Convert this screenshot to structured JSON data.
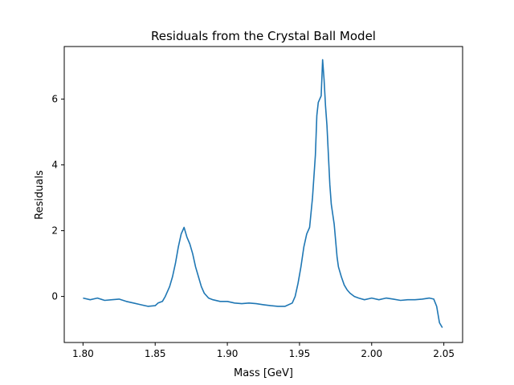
{
  "chart_data": {
    "type": "line",
    "title": "Residuals from the Crystal Ball Model",
    "xlabel": "Mass [GeV]",
    "ylabel": "Residuals",
    "xlim": [
      1.787,
      2.063
    ],
    "ylim": [
      -1.4,
      7.6
    ],
    "x_ticks": [
      "1.80",
      "1.85",
      "1.90",
      "1.95",
      "2.00",
      "2.05"
    ],
    "x_tick_values": [
      1.8,
      1.85,
      1.9,
      1.95,
      2.0,
      2.05
    ],
    "y_ticks": [
      "0",
      "2",
      "4",
      "6"
    ],
    "y_tick_values": [
      0,
      2,
      4,
      6
    ],
    "grid": false,
    "series": [
      {
        "color": "#1f77b4",
        "x": [
          1.8,
          1.805,
          1.81,
          1.815,
          1.82,
          1.825,
          1.83,
          1.835,
          1.84,
          1.845,
          1.85,
          1.852,
          1.855,
          1.857,
          1.86,
          1.862,
          1.864,
          1.866,
          1.868,
          1.87,
          1.872,
          1.874,
          1.876,
          1.878,
          1.88,
          1.882,
          1.884,
          1.887,
          1.89,
          1.895,
          1.9,
          1.905,
          1.91,
          1.915,
          1.92,
          1.925,
          1.93,
          1.935,
          1.94,
          1.945,
          1.947,
          1.949,
          1.951,
          1.953,
          1.955,
          1.957,
          1.959,
          1.961,
          1.962,
          1.963,
          1.964,
          1.965,
          1.966,
          1.967,
          1.968,
          1.969,
          1.97,
          1.971,
          1.972,
          1.973,
          1.974,
          1.975,
          1.976,
          1.977,
          1.979,
          1.981,
          1.983,
          1.985,
          1.988,
          1.991,
          1.995,
          2.0,
          2.005,
          2.01,
          2.015,
          2.02,
          2.025,
          2.03,
          2.035,
          2.04,
          2.043,
          2.045,
          2.047,
          2.049
        ],
        "y": [
          -0.05,
          -0.1,
          -0.05,
          -0.12,
          -0.1,
          -0.08,
          -0.15,
          -0.2,
          -0.25,
          -0.3,
          -0.28,
          -0.2,
          -0.15,
          0.0,
          0.3,
          0.6,
          1.0,
          1.5,
          1.9,
          2.1,
          1.8,
          1.6,
          1.3,
          0.9,
          0.6,
          0.3,
          0.1,
          -0.05,
          -0.1,
          -0.15,
          -0.15,
          -0.2,
          -0.22,
          -0.2,
          -0.22,
          -0.25,
          -0.28,
          -0.3,
          -0.3,
          -0.2,
          0.0,
          0.4,
          0.9,
          1.5,
          1.9,
          2.1,
          3.0,
          4.3,
          5.5,
          5.9,
          6.0,
          6.1,
          7.2,
          6.6,
          5.8,
          5.2,
          4.3,
          3.4,
          2.8,
          2.5,
          2.2,
          1.7,
          1.2,
          0.9,
          0.6,
          0.35,
          0.2,
          0.1,
          0.0,
          -0.05,
          -0.1,
          -0.05,
          -0.1,
          -0.05,
          -0.08,
          -0.12,
          -0.1,
          -0.1,
          -0.08,
          -0.05,
          -0.08,
          -0.3,
          -0.8,
          -0.95
        ]
      }
    ]
  }
}
